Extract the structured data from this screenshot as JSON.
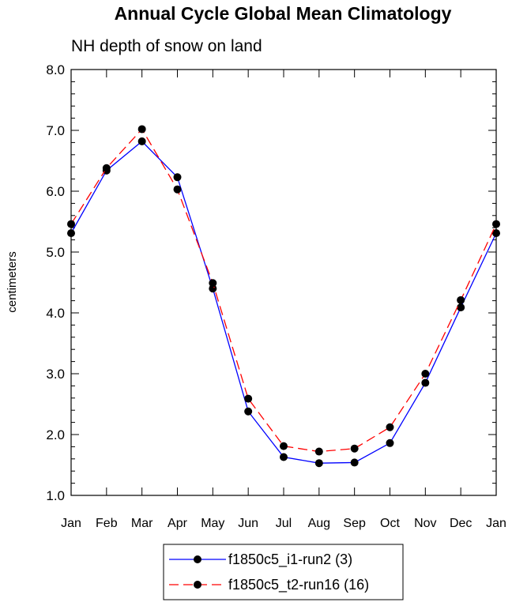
{
  "chart_data": {
    "type": "line",
    "title": "Annual Cycle Global Mean Climatology",
    "subtitle": "NH depth of snow on land",
    "xlabel": "",
    "ylabel": "centimeters",
    "categories": [
      "Jan",
      "Feb",
      "Mar",
      "Apr",
      "May",
      "Jun",
      "Jul",
      "Aug",
      "Sep",
      "Oct",
      "Nov",
      "Dec",
      "Jan"
    ],
    "ylim": [
      1.0,
      8.0
    ],
    "yticks": [
      "1.0",
      "2.0",
      "3.0",
      "4.0",
      "5.0",
      "6.0",
      "7.0",
      "8.0"
    ],
    "grid": false,
    "legend_position": "bottom-center",
    "series": [
      {
        "name": "f1850c5_i1-run2 (3)",
        "color": "#0000ff",
        "dash": "solid",
        "marker": "filled-circle",
        "values": [
          5.31,
          6.34,
          6.82,
          6.23,
          4.4,
          2.38,
          1.63,
          1.53,
          1.54,
          1.86,
          2.85,
          4.09,
          5.31
        ]
      },
      {
        "name": "f1850c5_t2-run16 (16)",
        "color": "#ff0000",
        "dash": "dashed",
        "marker": "filled-circle",
        "values": [
          5.46,
          6.38,
          7.02,
          6.03,
          4.49,
          2.59,
          1.81,
          1.72,
          1.77,
          2.12,
          3.0,
          4.21,
          5.46
        ]
      }
    ]
  }
}
